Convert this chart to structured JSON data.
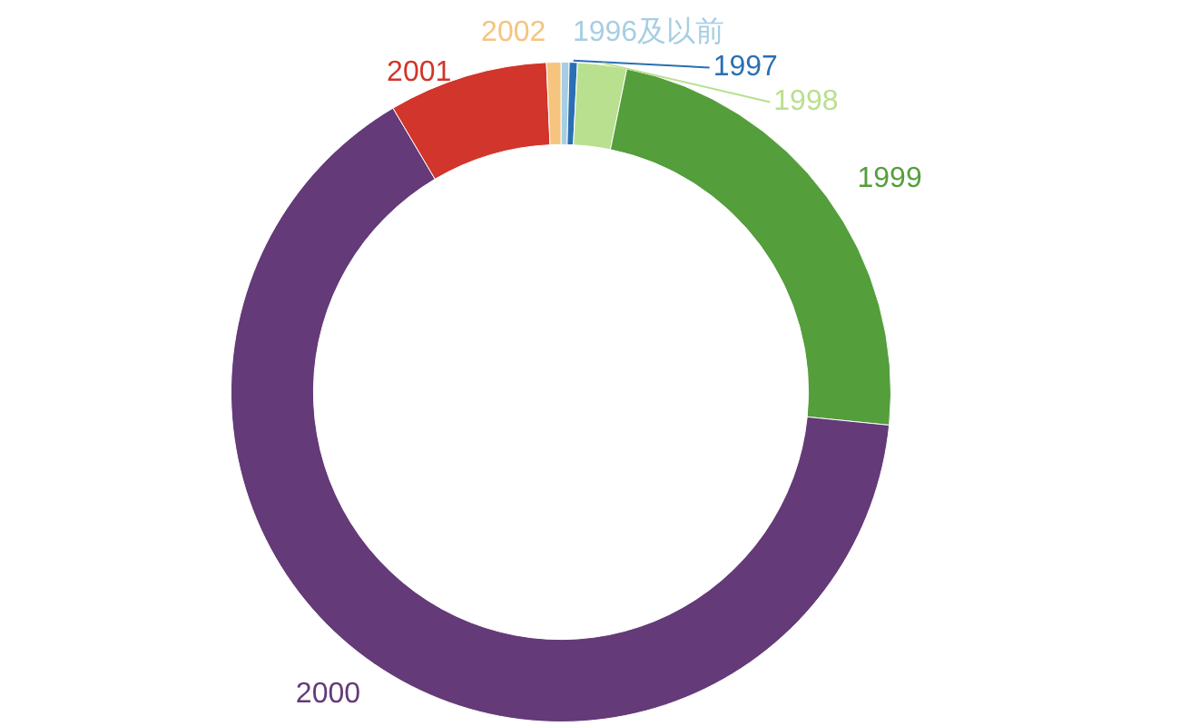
{
  "chart_data": {
    "type": "donut",
    "categories": [
      "1996及以前",
      "1997",
      "1998",
      "1999",
      "2000",
      "2001",
      "2002"
    ],
    "values": [
      0.4,
      0.4,
      2.4,
      23.4,
      64.9,
      7.8,
      0.7
    ],
    "colors": [
      "#a6cee3",
      "#2a6fb3",
      "#b8e08f",
      "#549e3c",
      "#643a78",
      "#d1352b",
      "#f5c47f"
    ],
    "legend": false
  }
}
